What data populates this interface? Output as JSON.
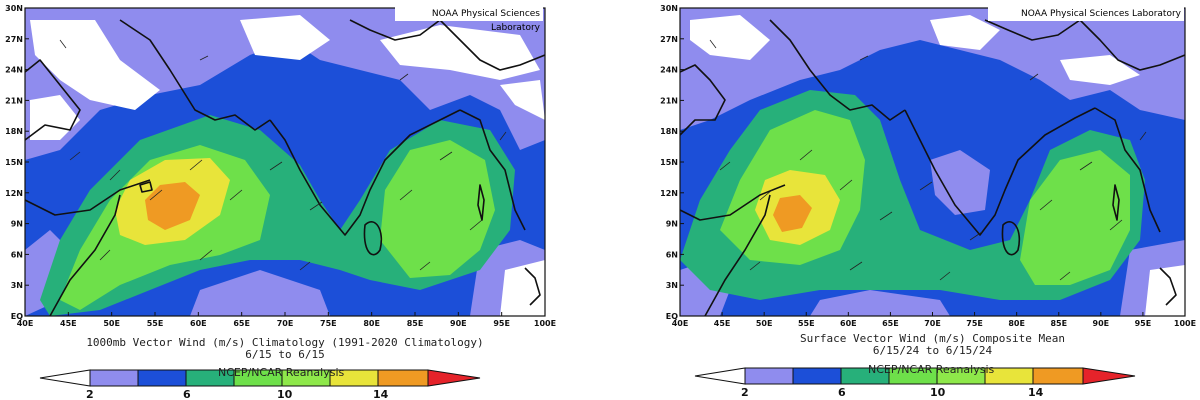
{
  "colors": {
    "c0": "#ffffff",
    "c1": "#8f8cee",
    "c2": "#1c4fd8",
    "c3": "#27b07a",
    "c4": "#6ee04a",
    "c5": "#e8e43a",
    "c6": "#ef9a23",
    "c7": "#e5232a",
    "land": "#111111"
  },
  "map": {
    "lon_ticks": [
      "40E",
      "45E",
      "50E",
      "55E",
      "60E",
      "65E",
      "70E",
      "75E",
      "80E",
      "85E",
      "90E",
      "95E",
      "100E"
    ],
    "lat_ticks": [
      "EQ",
      "3N",
      "6N",
      "9N",
      "12N",
      "15N",
      "18N",
      "21N",
      "24N",
      "27N",
      "30N"
    ]
  },
  "panels": [
    {
      "credit": "NOAA Physical Sciences Laboratory",
      "caption_line1": "1000mb Vector Wind (m/s) Climatology (1991-2020 Climatology)",
      "caption_line2": "6/15  to 6/15",
      "source": "NCEP/NCAR Reanalysis",
      "colorbar_labels": [
        "2",
        "6",
        "10",
        "14"
      ]
    },
    {
      "credit": "NOAA Physical Sciences Laboratory",
      "caption_line1": "Surface Vector Wind (m/s) Composite Mean",
      "caption_line2": "6/15/24  to 6/15/24",
      "source": "NCEP/NCAR Reanalysis",
      "colorbar_labels": [
        "2",
        "6",
        "10",
        "14"
      ]
    }
  ]
}
